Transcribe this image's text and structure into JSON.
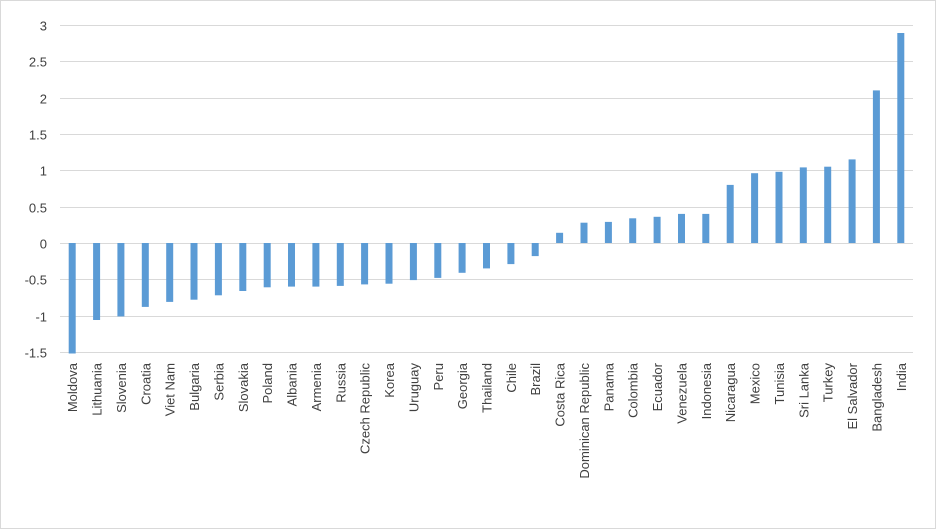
{
  "chart_data": {
    "type": "bar",
    "title": "",
    "xlabel": "",
    "ylabel": "",
    "ylim": [
      -1.5,
      3
    ],
    "yticks": [
      -1.5,
      -1,
      -0.5,
      0,
      0.5,
      1,
      1.5,
      2,
      2.5,
      3
    ],
    "grid": true,
    "legend": "none",
    "bar_color": "#5b9bd5",
    "categories": [
      "Moldova",
      "Lithuania",
      "Slovenia",
      "Croatia",
      "Viet Nam",
      "Bulgaria",
      "Serbia",
      "Slovakia",
      "Poland",
      "Albania",
      "Armenia",
      "Russia",
      "Czech Republic",
      "Korea",
      "Uruguay",
      "Peru",
      "Georgia",
      "Thailand",
      "Chile",
      "Brazil",
      "Costa Rica",
      "Dominican Republic",
      "Panama",
      "Colombia",
      "Ecuador",
      "Venezuela",
      "Indonesia",
      "Nicaragua",
      "Mexico",
      "Tunisia",
      "Sri Lanka",
      "Turkey",
      "El Salvador",
      "Bangladesh",
      "India"
    ],
    "values": [
      -1.52,
      -1.06,
      -1.01,
      -0.88,
      -0.81,
      -0.78,
      -0.72,
      -0.66,
      -0.61,
      -0.6,
      -0.6,
      -0.59,
      -0.57,
      -0.56,
      -0.51,
      -0.48,
      -0.41,
      -0.35,
      -0.29,
      -0.18,
      0.14,
      0.28,
      0.29,
      0.34,
      0.36,
      0.4,
      0.4,
      0.8,
      0.96,
      0.98,
      1.04,
      1.05,
      1.15,
      2.1,
      2.89
    ]
  }
}
